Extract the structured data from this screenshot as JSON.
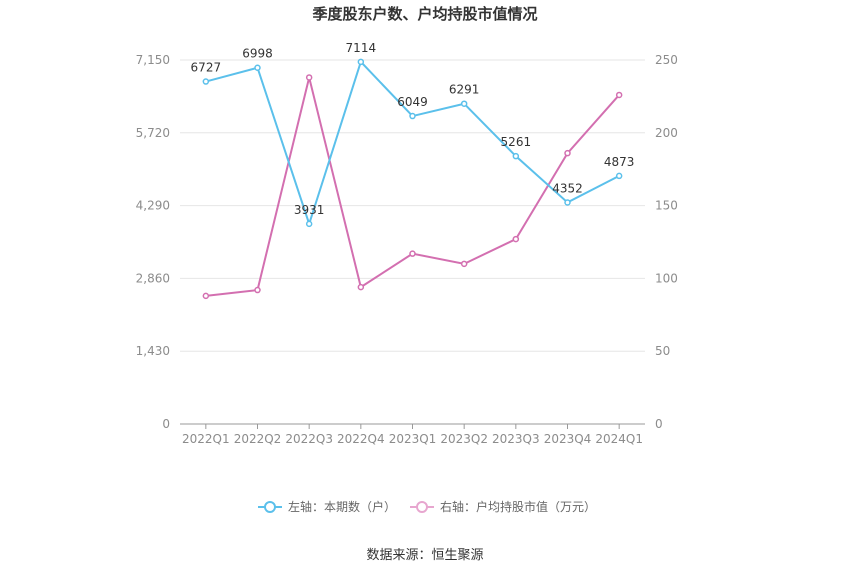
{
  "chart_data": {
    "type": "line",
    "title": "季度股东户数、户均持股市值情况",
    "categories": [
      "2022Q1",
      "2022Q2",
      "2022Q3",
      "2022Q4",
      "2023Q1",
      "2023Q2",
      "2023Q3",
      "2023Q4",
      "2024Q1"
    ],
    "left_axis": {
      "ticks": [
        "0",
        "1,430",
        "2,860",
        "4,290",
        "5,720",
        "7,150"
      ],
      "min": 0,
      "max": 7150
    },
    "right_axis": {
      "ticks": [
        "0",
        "50",
        "100",
        "150",
        "200",
        "250"
      ],
      "min": 0,
      "max": 250
    },
    "grid": true,
    "legend_position": "bottom",
    "series": [
      {
        "name": "左轴：本期数（户）",
        "axis": "left",
        "color": "#5bc0eb",
        "values": [
          6727,
          6998,
          3931,
          7114,
          6049,
          6291,
          5261,
          4352,
          4873
        ],
        "labels": [
          "6727",
          "6998",
          "3931",
          "7114",
          "6049",
          "6291",
          "5261",
          "4352",
          "4873"
        ]
      },
      {
        "name": "右轴：户均持股市值（万元）",
        "axis": "right",
        "color": "#d36fb0",
        "values": [
          88,
          92,
          238,
          94,
          117,
          110,
          127,
          186,
          226
        ]
      }
    ],
    "source": "数据来源：恒生聚源"
  }
}
